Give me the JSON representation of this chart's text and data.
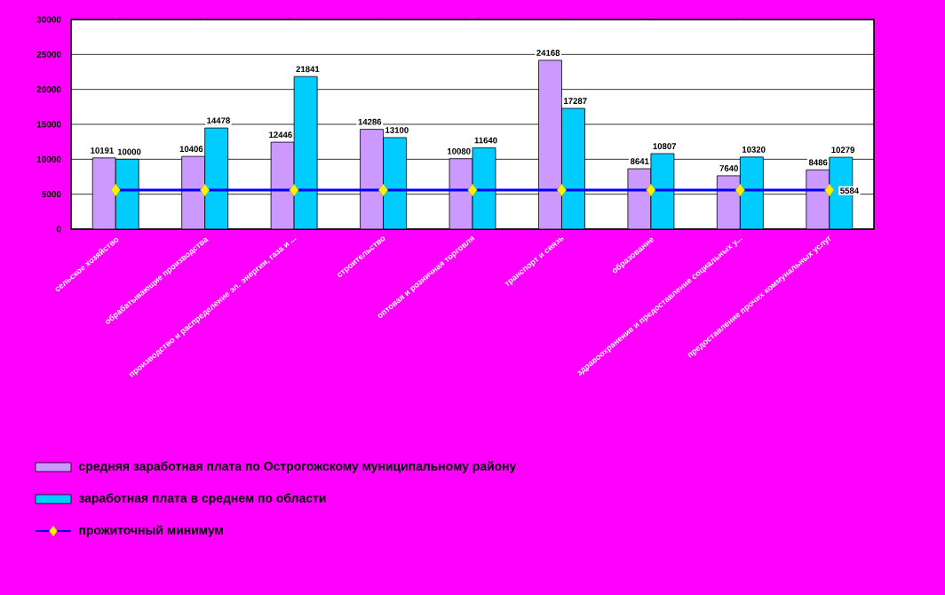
{
  "chart_data": {
    "type": "bar",
    "categories": [
      "сельское хозяйство",
      "обрабатывающие производства",
      "производство и распределение эл. энергии, газа и ...",
      "строительство",
      "оптовая и розничная торговля",
      "транспорт и связь",
      "образование",
      "здравоохранение и предоставление социальных у...",
      "предоставление прочих коммунальных услуг"
    ],
    "series": [
      {
        "name": "средняя заработная плата по Острогожскому муниципальному району",
        "color": "#cc99ff",
        "values": [
          10191,
          10406,
          12446,
          14286,
          10080,
          24168,
          8641,
          7640,
          8486
        ],
        "value_labels": [
          "10191",
          "10406",
          "12446",
          "14286",
          "10080",
          "24168",
          "8641",
          "7640",
          "8486"
        ]
      },
      {
        "name": "заработная плата в среднем по области",
        "color": "#00ccff",
        "values": [
          10000,
          14478,
          21841,
          13100,
          11640,
          17287,
          10807,
          10320,
          10279
        ],
        "value_labels": [
          "10000",
          "14478",
          "21841",
          "13100",
          "11640",
          "17287",
          "10807",
          "10320",
          "10279"
        ]
      },
      {
        "name": "прожиточный минимум",
        "type": "line",
        "color": "#0000ff",
        "marker": "diamond",
        "values": [
          5584,
          5584,
          5584,
          5584,
          5584,
          5584,
          5584,
          5584,
          5584
        ],
        "value_labels": [
          null,
          null,
          null,
          null,
          null,
          null,
          null,
          null,
          "5584"
        ]
      }
    ],
    "ylim": [
      0,
      30000
    ],
    "yticks": [
      0,
      5000,
      10000,
      15000,
      20000,
      25000,
      30000
    ],
    "grid": "y",
    "legend": "bottom"
  }
}
